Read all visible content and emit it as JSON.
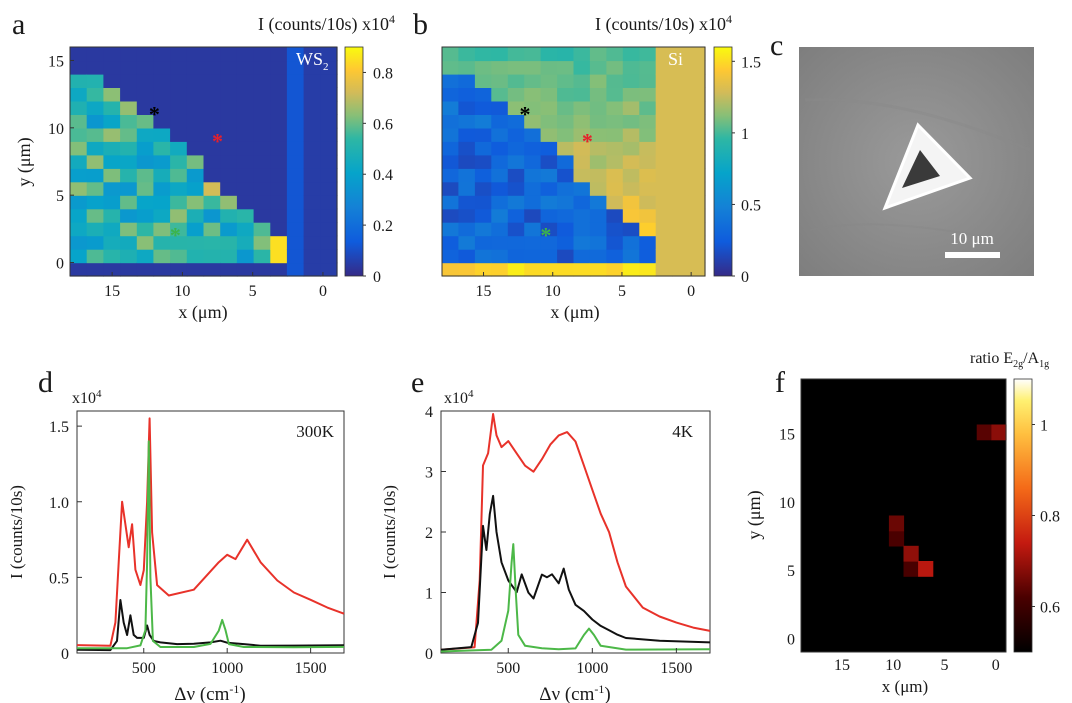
{
  "panels": {
    "a": {
      "letter": "a",
      "cbar_title": "I (counts/10s) x10",
      "cbar_exp": "4",
      "label": "WS",
      "label_sub": "2",
      "xlabel": "x (μm)",
      "ylabel": "y (μm)",
      "xticks": [
        "15",
        "10",
        "5",
        "0"
      ],
      "yticks": [
        "15",
        "10",
        "5",
        "0"
      ],
      "cbar_ticks": [
        "0.8",
        "0.6",
        "0.4",
        "0.2",
        "0"
      ]
    },
    "b": {
      "letter": "b",
      "cbar_title": "I (counts/10s) x10",
      "cbar_exp": "4",
      "label": "Si",
      "xlabel": "x (μm)",
      "xticks": [
        "15",
        "10",
        "5",
        "0"
      ],
      "cbar_ticks": [
        "1.5",
        "1",
        "0.5",
        "0"
      ]
    },
    "c": {
      "letter": "c",
      "scalebar": "10 μm"
    },
    "d": {
      "letter": "d",
      "mult": "x10",
      "mult_exp": "4",
      "annot": "300K",
      "ylabel": "I (counts/10s)",
      "xlabel_main": "Δν (cm",
      "xlabel_exp": "-1",
      "xlabel_close": ")",
      "xticks": [
        "500",
        "1000",
        "1500"
      ],
      "yticks": [
        "1.5",
        "1.0",
        "0.5",
        "0"
      ]
    },
    "e": {
      "letter": "e",
      "mult": "x10",
      "mult_exp": "4",
      "annot": "4K",
      "ylabel": "I (counts/10s)",
      "xlabel_main": "Δν (cm",
      "xlabel_exp": "-1",
      "xlabel_close": ")",
      "xticks": [
        "500",
        "1000",
        "1500"
      ],
      "yticks": [
        "4",
        "3",
        "2",
        "1",
        "0"
      ]
    },
    "f": {
      "letter": "f",
      "cbar_title_main": "ratio E",
      "cbar_sub1": "2g",
      "cbar_slash": "/A",
      "cbar_sub2": "1g",
      "xlabel": "x (μm)",
      "ylabel": "y (μm)",
      "xticks": [
        "15",
        "10",
        "5",
        "0"
      ],
      "yticks": [
        "15",
        "10",
        "5",
        "0"
      ],
      "cbar_ticks": [
        "1",
        "0.8",
        "0.6"
      ]
    }
  },
  "chart_data": [
    {
      "panel": "a",
      "type": "heatmap",
      "title": "",
      "xlabel": "x (μm)",
      "ylabel": "y (μm)",
      "xlim": [
        18,
        -1
      ],
      "ylim": [
        -1,
        16
      ],
      "colorscale": "parula",
      "zlim": [
        0,
        0.9
      ],
      "z_units": "I (counts/10s) x10^4",
      "markers": [
        {
          "color": "#000000",
          "x": 12,
          "y": 11
        },
        {
          "color": "#e8202a",
          "x": 7.5,
          "y": 9
        },
        {
          "color": "#3cb44b",
          "x": 10.5,
          "y": 2
        }
      ],
      "description": "triangular WS2 flake: high intensity along right edge (x≈3) and interior around x≈5-9, low (≈0) outside triangle"
    },
    {
      "panel": "b",
      "type": "heatmap",
      "title": "",
      "xlabel": "x (μm)",
      "xlim": [
        18,
        -1
      ],
      "ylim": [
        -1,
        16
      ],
      "colorscale": "parula",
      "zlim": [
        0,
        1.6
      ],
      "z_units": "I (counts/10s) x10^4",
      "markers": [
        {
          "color": "#000000",
          "x": 12,
          "y": 11
        },
        {
          "color": "#e8202a",
          "x": 7.5,
          "y": 9
        },
        {
          "color": "#3cb44b",
          "x": 10.5,
          "y": 2
        }
      ],
      "description": "Si signal: low (≈0.1) in triangle region, high (≈1.2-1.5) outside"
    },
    {
      "panel": "d",
      "type": "line",
      "title": "",
      "xlabel": "Δν (cm-1)",
      "ylabel": "I (counts/10s)",
      "xlim": [
        100,
        1700
      ],
      "ylim": [
        0,
        1.6
      ],
      "y_multiplier": "x10^4",
      "annotation": "300K",
      "series": [
        {
          "color": "#e8322a",
          "x": [
            100,
            300,
            330,
            350,
            370,
            390,
            410,
            430,
            450,
            480,
            500,
            520,
            535,
            550,
            580,
            650,
            800,
            950,
            1000,
            1050,
            1120,
            1200,
            1300,
            1400,
            1500,
            1600,
            1700
          ],
          "values": [
            0.05,
            0.05,
            0.2,
            0.6,
            1.0,
            0.85,
            0.7,
            0.85,
            0.55,
            0.45,
            0.55,
            1.0,
            1.55,
            0.8,
            0.45,
            0.38,
            0.42,
            0.6,
            0.65,
            0.62,
            0.75,
            0.6,
            0.48,
            0.4,
            0.35,
            0.3,
            0.26
          ]
        },
        {
          "color": "#111111",
          "x": [
            100,
            300,
            340,
            360,
            380,
            400,
            420,
            440,
            460,
            500,
            520,
            535,
            560,
            600,
            700,
            800,
            900,
            960,
            1000,
            1100,
            1200,
            1400,
            1700
          ],
          "values": [
            0.02,
            0.02,
            0.08,
            0.35,
            0.2,
            0.12,
            0.25,
            0.12,
            0.1,
            0.1,
            0.18,
            0.12,
            0.08,
            0.07,
            0.06,
            0.06,
            0.07,
            0.08,
            0.07,
            0.06,
            0.05,
            0.05,
            0.05
          ]
        },
        {
          "color": "#4cb848",
          "x": [
            100,
            400,
            480,
            510,
            520,
            530,
            540,
            555,
            600,
            800,
            900,
            950,
            970,
            990,
            1010,
            1100,
            1400,
            1700
          ],
          "values": [
            0.03,
            0.03,
            0.05,
            0.15,
            0.6,
            1.4,
            0.5,
            0.08,
            0.04,
            0.04,
            0.06,
            0.15,
            0.22,
            0.15,
            0.06,
            0.04,
            0.04,
            0.04
          ]
        }
      ]
    },
    {
      "panel": "e",
      "type": "line",
      "title": "",
      "xlabel": "Δν (cm-1)",
      "ylabel": "I (counts/10s)",
      "xlim": [
        100,
        1700
      ],
      "ylim": [
        0,
        4
      ],
      "y_multiplier": "x10^4",
      "annotation": "4K",
      "series": [
        {
          "color": "#e8322a",
          "x": [
            100,
            300,
            330,
            350,
            380,
            410,
            430,
            460,
            500,
            550,
            600,
            650,
            700,
            750,
            800,
            850,
            900,
            950,
            1000,
            1050,
            1100,
            1150,
            1200,
            1300,
            1400,
            1500,
            1600,
            1700
          ],
          "values": [
            0.05,
            0.1,
            1.2,
            3.1,
            3.3,
            3.95,
            3.6,
            3.4,
            3.5,
            3.3,
            3.1,
            3.0,
            3.2,
            3.45,
            3.6,
            3.65,
            3.5,
            3.1,
            2.7,
            2.3,
            2.0,
            1.5,
            1.1,
            0.75,
            0.6,
            0.5,
            0.42,
            0.36
          ]
        },
        {
          "color": "#111111",
          "x": [
            100,
            280,
            320,
            350,
            370,
            390,
            410,
            430,
            460,
            500,
            550,
            580,
            620,
            650,
            700,
            730,
            760,
            800,
            830,
            860,
            900,
            950,
            1000,
            1050,
            1100,
            1150,
            1200,
            1400,
            1700
          ],
          "values": [
            0.05,
            0.1,
            0.5,
            2.1,
            1.7,
            2.3,
            2.6,
            2.0,
            1.5,
            1.2,
            1.0,
            1.3,
            1.0,
            0.9,
            1.3,
            1.25,
            1.3,
            1.15,
            1.4,
            1.05,
            0.8,
            0.7,
            0.55,
            0.45,
            0.38,
            0.3,
            0.25,
            0.2,
            0.18
          ]
        },
        {
          "color": "#4cb848",
          "x": [
            100,
            400,
            460,
            500,
            520,
            530,
            545,
            560,
            600,
            700,
            800,
            900,
            950,
            980,
            1010,
            1050,
            1200,
            1700
          ],
          "values": [
            0.02,
            0.05,
            0.2,
            0.7,
            1.5,
            1.8,
            1.0,
            0.3,
            0.12,
            0.08,
            0.06,
            0.08,
            0.3,
            0.4,
            0.3,
            0.12,
            0.06,
            0.06
          ]
        }
      ]
    },
    {
      "panel": "f",
      "type": "heatmap",
      "title": "",
      "xlabel": "x (μm)",
      "ylabel": "y (μm)",
      "xlim": [
        19,
        -1
      ],
      "ylim": [
        -1,
        19
      ],
      "colorscale": "hot",
      "zlim": [
        0.5,
        1.1
      ],
      "z_units": "ratio E2g/A1g",
      "description": "triangle map: ratio ≈0.7-0.9 near edges, up to ≈1.05 in center around x≈5,y≈9; black (≈0.5) outside triangle"
    }
  ]
}
